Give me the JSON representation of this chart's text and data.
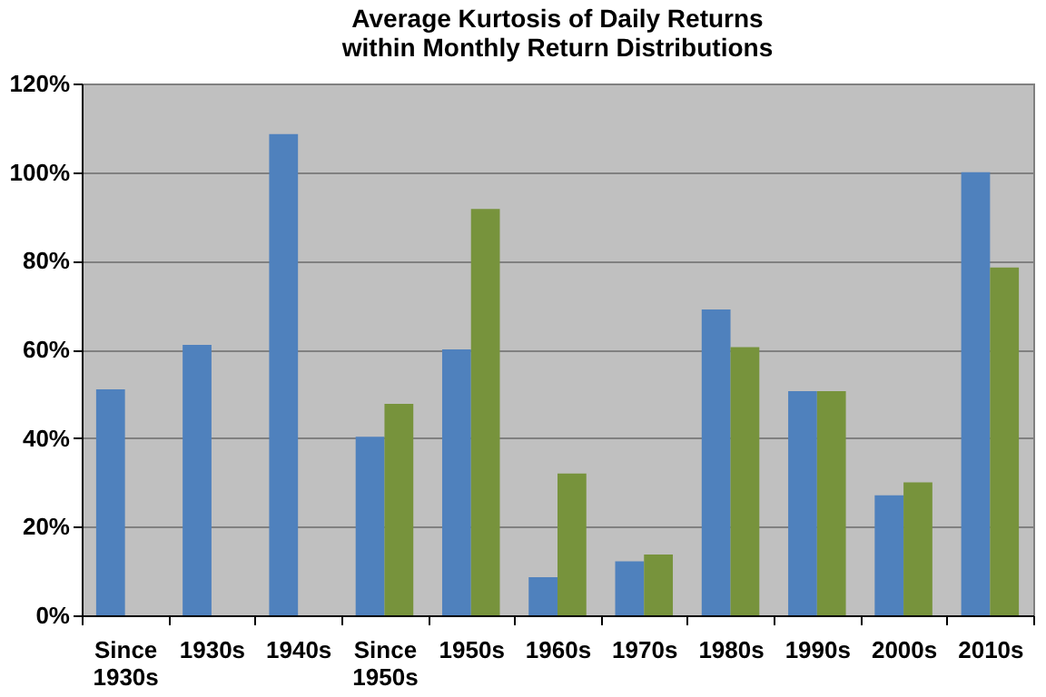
{
  "chart_data": {
    "type": "bar",
    "title": [
      "Average Kurtosis of Daily Returns",
      "within  Monthly Return Distributions"
    ],
    "categories": [
      "Since 1930s",
      "1930s",
      "1940s",
      "Since 1950s",
      "1950s",
      "1960s",
      "1970s",
      "1980s",
      "1990s",
      "2000s",
      "2010s"
    ],
    "series": [
      {
        "color": "#4f81bd",
        "values": [
          51,
          61,
          108.6,
          40.3,
          60,
          8.6,
          12.2,
          69,
          50.6,
          27.1,
          100
        ]
      },
      {
        "color": "#77933c",
        "values": [
          null,
          null,
          null,
          47.7,
          91.7,
          32,
          13.7,
          60.5,
          50.6,
          30,
          78.5
        ]
      }
    ],
    "ylim": [
      0,
      120
    ],
    "yticks": [
      {
        "value": 0,
        "label": "0%"
      },
      {
        "value": 20,
        "label": "20%"
      },
      {
        "value": 40,
        "label": "40%"
      },
      {
        "value": 60,
        "label": "60%"
      },
      {
        "value": 80,
        "label": "80%"
      },
      {
        "value": 100,
        "label": "100%"
      },
      {
        "value": 120,
        "label": "120%"
      }
    ],
    "grid": "y"
  }
}
